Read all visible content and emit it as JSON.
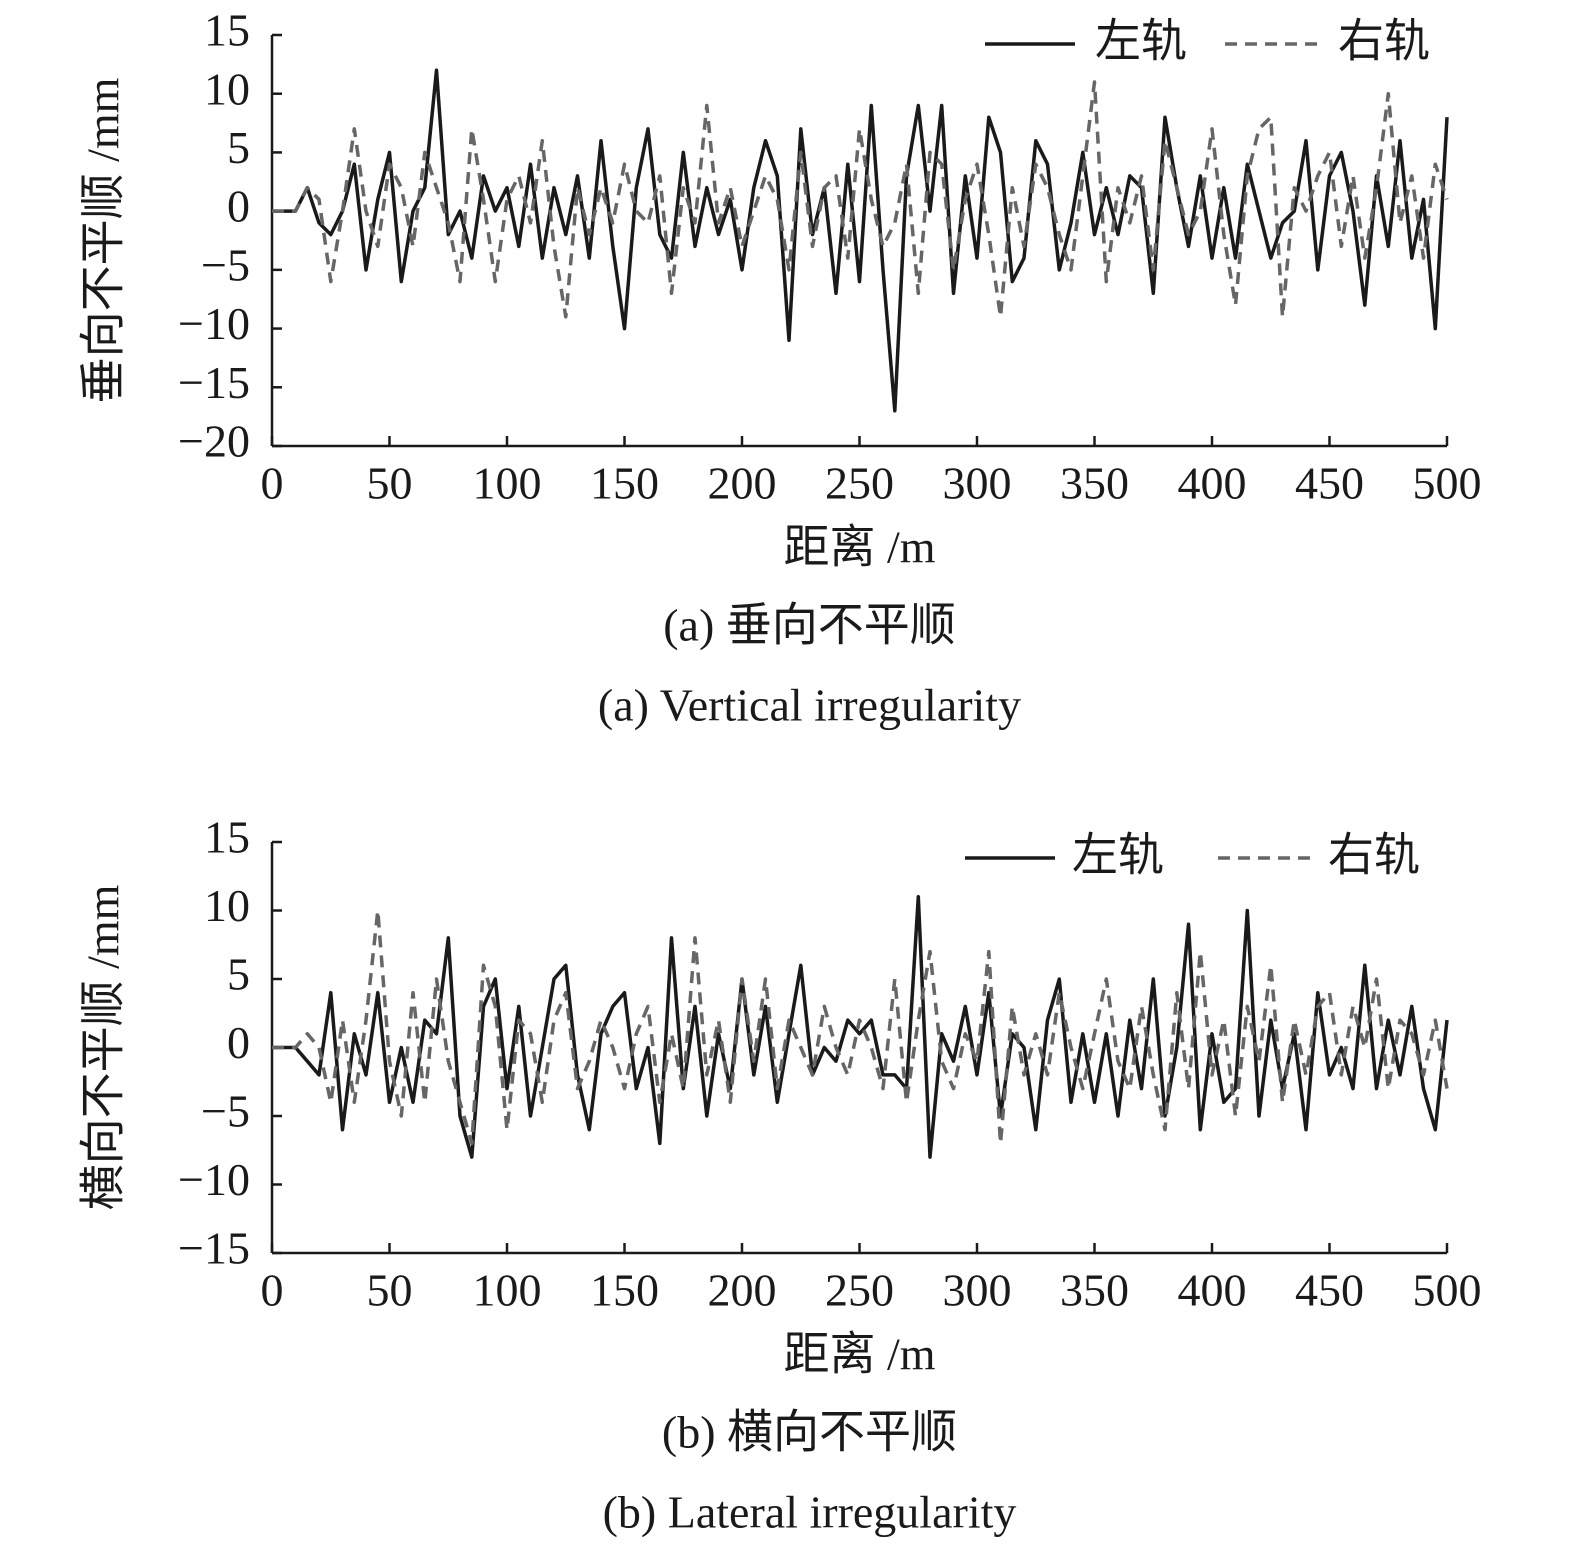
{
  "chart_data": [
    {
      "type": "line",
      "ylabel": "垂向不平顺 /mm",
      "xlabel": "距离 /m",
      "captions": [
        "(a) 垂向不平顺",
        "(a) Vertical irregularity"
      ],
      "legend": "upper right",
      "xlim": [
        0,
        500
      ],
      "xticks": [
        0,
        50,
        100,
        150,
        200,
        250,
        300,
        350,
        400,
        450,
        500
      ],
      "ylim": [
        -20,
        15
      ],
      "yticks": [
        15,
        10,
        5,
        0,
        {
          "value": -5,
          "label": "−5"
        },
        {
          "value": -10,
          "label": "−10"
        },
        {
          "value": -15,
          "label": "−15"
        },
        {
          "value": -20,
          "label": "−20"
        }
      ],
      "x": [
        0,
        5,
        10,
        15,
        20,
        25,
        30,
        35,
        40,
        45,
        50,
        55,
        60,
        65,
        70,
        75,
        80,
        85,
        90,
        95,
        100,
        105,
        110,
        115,
        120,
        125,
        130,
        135,
        140,
        145,
        150,
        155,
        160,
        165,
        170,
        175,
        180,
        185,
        190,
        195,
        200,
        205,
        210,
        215,
        220,
        225,
        230,
        235,
        240,
        245,
        250,
        255,
        260,
        265,
        270,
        275,
        280,
        285,
        290,
        295,
        300,
        305,
        310,
        315,
        320,
        325,
        330,
        335,
        340,
        345,
        350,
        355,
        360,
        365,
        370,
        375,
        380,
        385,
        390,
        395,
        400,
        405,
        410,
        415,
        420,
        425,
        430,
        435,
        440,
        445,
        450,
        455,
        460,
        465,
        470,
        475,
        480,
        485,
        490,
        495,
        500
      ],
      "series": [
        {
          "name": "左轨",
          "color": "#1a1a1a",
          "style": "solid",
          "values": [
            0,
            0,
            0,
            2,
            -1,
            -2,
            0,
            4,
            -5,
            1,
            5,
            -6,
            0,
            2,
            12,
            -2,
            0,
            -4,
            3,
            0,
            2,
            -3,
            4,
            -4,
            2,
            -2,
            3,
            -4,
            6,
            -3,
            -10,
            2,
            7,
            -2,
            -4,
            5,
            -3,
            2,
            -2,
            1,
            -5,
            2,
            6,
            3,
            -11,
            7,
            -2,
            2,
            -7,
            4,
            -6,
            9,
            -5,
            -17,
            3,
            9,
            0,
            9,
            -7,
            3,
            -4,
            8,
            5,
            -6,
            -4,
            6,
            4,
            -5,
            -1,
            5,
            -2,
            2,
            -2,
            3,
            2,
            -7,
            8,
            2,
            -3,
            3,
            -4,
            2,
            -4,
            4,
            0,
            -4,
            -1,
            0,
            6,
            -5,
            3,
            5,
            0,
            -8,
            3,
            -3,
            6,
            -4,
            1,
            -10,
            8
          ]
        },
        {
          "name": "右轨",
          "color": "#666666",
          "style": "dashed",
          "values": [
            0,
            0,
            0,
            2,
            1,
            -6,
            0,
            7,
            0,
            -3,
            4,
            2,
            -3,
            5,
            2,
            -1,
            -6,
            7,
            1,
            -6,
            1,
            3,
            -1,
            6,
            -3,
            -9,
            2,
            -2,
            2,
            -1,
            4,
            0,
            -1,
            3,
            -7,
            2,
            -1,
            9,
            -1,
            2,
            -3,
            0,
            3,
            1,
            -5,
            5,
            -3,
            2,
            3,
            -4,
            7,
            1,
            -3,
            -1,
            4,
            -7,
            5,
            4,
            -5,
            1,
            4,
            -2,
            -9,
            2,
            -3,
            4,
            2,
            -2,
            -5,
            3,
            11,
            -6,
            2,
            -1,
            3,
            -5,
            6,
            2,
            -2,
            0,
            7,
            -2,
            -8,
            3,
            7,
            8,
            -9,
            2,
            0,
            3,
            5,
            -3,
            3,
            -4,
            2,
            10,
            -1,
            3,
            -4,
            4,
            1
          ]
        }
      ]
    },
    {
      "type": "line",
      "ylabel": "横向不平顺 /mm",
      "xlabel": "距离 /m",
      "captions": [
        "(b) 横向不平顺",
        "(b) Lateral irregularity"
      ],
      "legend": "upper right",
      "xlim": [
        0,
        500
      ],
      "xticks": [
        0,
        50,
        100,
        150,
        200,
        250,
        300,
        350,
        400,
        450,
        500
      ],
      "ylim": [
        -15,
        15
      ],
      "yticks": [
        15,
        10,
        5,
        0,
        {
          "value": -5,
          "label": "−5"
        },
        {
          "value": -10,
          "label": "−10"
        },
        {
          "value": -15,
          "label": "−15"
        }
      ],
      "x": [
        0,
        5,
        10,
        15,
        20,
        25,
        30,
        35,
        40,
        45,
        50,
        55,
        60,
        65,
        70,
        75,
        80,
        85,
        90,
        95,
        100,
        105,
        110,
        115,
        120,
        125,
        130,
        135,
        140,
        145,
        150,
        155,
        160,
        165,
        170,
        175,
        180,
        185,
        190,
        195,
        200,
        205,
        210,
        215,
        220,
        225,
        230,
        235,
        240,
        245,
        250,
        255,
        260,
        265,
        270,
        275,
        280,
        285,
        290,
        295,
        300,
        305,
        310,
        315,
        320,
        325,
        330,
        335,
        340,
        345,
        350,
        355,
        360,
        365,
        370,
        375,
        380,
        385,
        390,
        395,
        400,
        405,
        410,
        415,
        420,
        425,
        430,
        435,
        440,
        445,
        450,
        455,
        460,
        465,
        470,
        475,
        480,
        485,
        490,
        495,
        500
      ],
      "series": [
        {
          "name": "左轨",
          "color": "#1a1a1a",
          "style": "solid",
          "values": [
            0,
            0,
            0,
            -1,
            -2,
            4,
            -6,
            1,
            -2,
            4,
            -4,
            0,
            -4,
            2,
            1,
            8,
            -5,
            -8,
            3,
            5,
            -3,
            3,
            -5,
            0,
            5,
            6,
            -2,
            -6,
            1,
            3,
            4,
            -3,
            0,
            -7,
            8,
            -3,
            3,
            -5,
            1,
            -3,
            5,
            -2,
            3,
            -4,
            1,
            6,
            -2,
            0,
            -1,
            2,
            1,
            2,
            -2,
            -2,
            -3,
            11,
            -8,
            1,
            -1,
            3,
            -2,
            4,
            -5,
            1,
            0,
            -6,
            2,
            5,
            -4,
            1,
            -4,
            1,
            -5,
            2,
            -3,
            5,
            -5,
            0,
            9,
            -6,
            1,
            -4,
            -3,
            10,
            -5,
            2,
            -3,
            1,
            -6,
            4,
            -2,
            0,
            -3,
            6,
            -3,
            2,
            -2,
            3,
            -3,
            -6,
            2
          ]
        },
        {
          "name": "右轨",
          "color": "#666666",
          "style": "dashed",
          "values": [
            0,
            0,
            0,
            1,
            0,
            -4,
            2,
            -4,
            2,
            10,
            -1,
            -5,
            4,
            -4,
            5,
            -1,
            -4,
            -7,
            6,
            3,
            -6,
            2,
            1,
            -4,
            2,
            4,
            -3,
            -1,
            2,
            0,
            -3,
            1,
            3,
            -4,
            1,
            -3,
            8,
            -2,
            2,
            -4,
            5,
            -1,
            5,
            -3,
            2,
            0,
            -2,
            3,
            0,
            -2,
            2,
            0,
            -3,
            5,
            -4,
            2,
            7,
            -1,
            -3,
            1,
            -1,
            7,
            -7,
            3,
            -2,
            1,
            -2,
            4,
            0,
            -3,
            1,
            5,
            -1,
            -3,
            3,
            -2,
            -6,
            4,
            -3,
            7,
            -2,
            2,
            -5,
            3,
            -1,
            6,
            -4,
            2,
            -2,
            3,
            4,
            -2,
            3,
            0,
            5,
            -3,
            2,
            1,
            -2,
            2,
            -3
          ]
        }
      ]
    }
  ]
}
